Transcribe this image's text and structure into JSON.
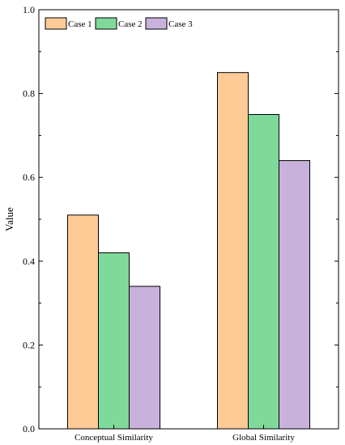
{
  "chart_data": {
    "type": "bar",
    "categories": [
      "Conceptual Similarity",
      "Global Similarity"
    ],
    "series": [
      {
        "name": "Case 1",
        "values": [
          0.51,
          0.85
        ],
        "color": "#FECB97"
      },
      {
        "name": "Case 2",
        "values": [
          0.42,
          0.75
        ],
        "color": "#7FD99A"
      },
      {
        "name": "Case 3",
        "values": [
          0.34,
          0.64
        ],
        "color": "#C8B2DB"
      }
    ],
    "title": "",
    "xlabel": "",
    "ylabel": "Value",
    "ylim": [
      0,
      1.0
    ],
    "yticks": [
      0.0,
      0.2,
      0.4,
      0.6,
      0.8,
      1.0
    ],
    "ytick_labels": [
      "0.0",
      "0.2",
      "0.4",
      "0.6",
      "0.8",
      "1.0"
    ],
    "grid": false,
    "legend_position": "top-left"
  }
}
